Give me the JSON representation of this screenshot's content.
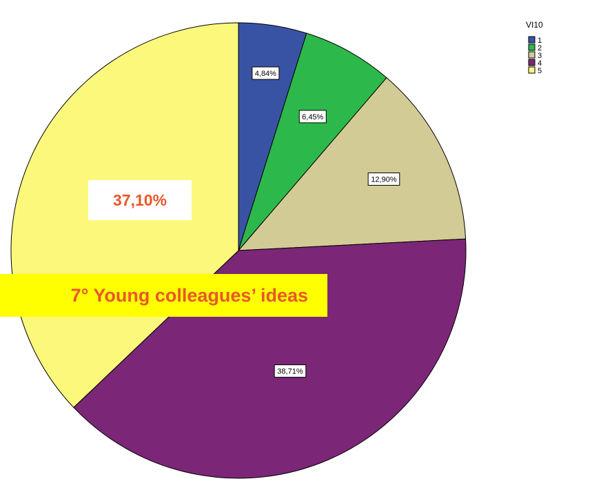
{
  "chart_data": {
    "type": "pie",
    "legend_title": "VI10",
    "legend_position": "top-right",
    "categories": [
      "1",
      "2",
      "3",
      "4",
      "5"
    ],
    "values": [
      4.84,
      6.45,
      12.9,
      38.71,
      37.1
    ],
    "labels": [
      "4,84%",
      "6,45%",
      "12,90%",
      "38,71%",
      "37,10%"
    ],
    "colors": [
      "#3953a4",
      "#2db84b",
      "#d2cb96",
      "#7b2677",
      "#fcf87c"
    ],
    "start_angle_deg": 0,
    "direction": "clockwise"
  },
  "overlay": {
    "highlight_label": "37,10%",
    "caption": "7° Young colleagues’ ideas",
    "caption_bg": "#ffff00",
    "caption_color": "#e8572a"
  }
}
